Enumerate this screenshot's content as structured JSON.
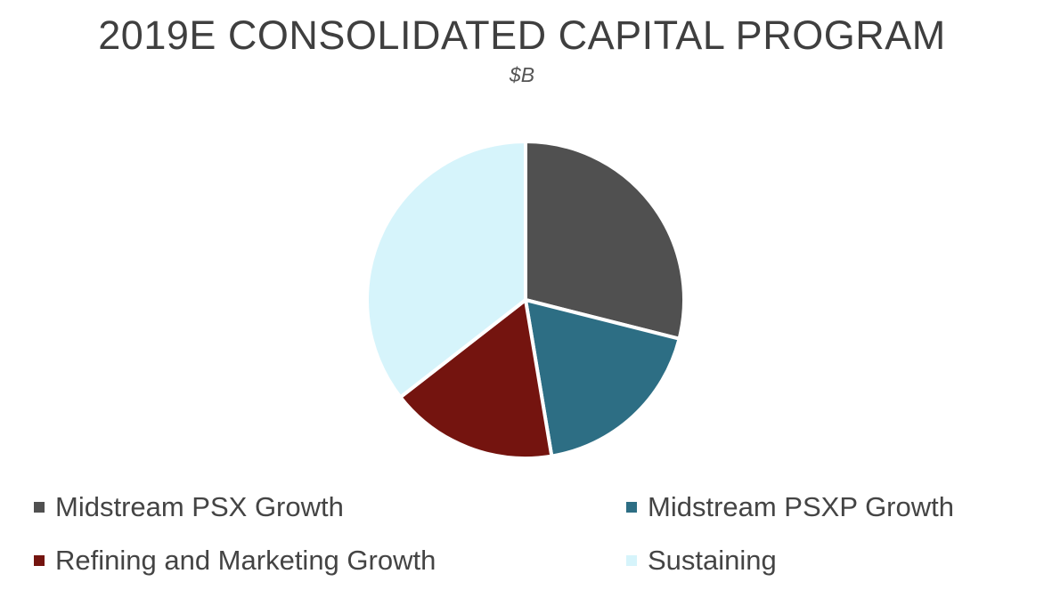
{
  "chart_data": {
    "type": "pie",
    "title": "2019E CONSOLIDATED CAPITAL PROGRAM",
    "subtitle": "$B",
    "categories": [
      "Midstream PSX Growth",
      "Midstream PSXP Growth",
      "Refining and Marketing Growth",
      "Sustaining"
    ],
    "values": [
      1.1,
      0.7,
      0.65,
      1.35
    ],
    "colors": [
      "#505050",
      "#2d6e84",
      "#74140f",
      "#d6f4fb"
    ],
    "legend_position": "bottom"
  }
}
